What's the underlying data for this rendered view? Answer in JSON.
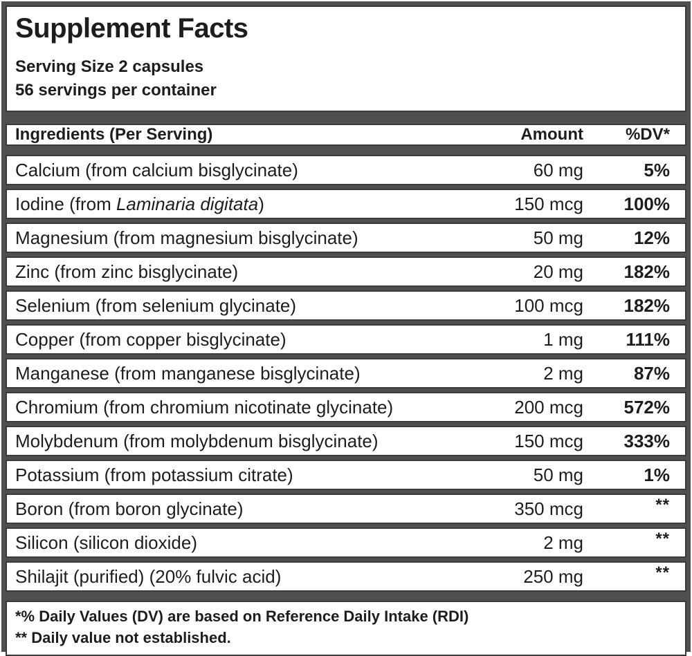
{
  "label": {
    "title": "Supplement Facts",
    "serving_size": "Serving Size 2 capsules",
    "servings_per_container": "56 servings per container"
  },
  "table": {
    "headers": {
      "ingredients": "Ingredients (Per Serving)",
      "amount": "Amount",
      "dv": "%DV*"
    },
    "rows": [
      {
        "name_pre": "Calcium (from calcium bisglycinate)",
        "name_italic": "",
        "name_post": "",
        "amount": "60 mg",
        "dv": "5%"
      },
      {
        "name_pre": "Iodine (from ",
        "name_italic": "Laminaria digitata",
        "name_post": ")",
        "amount": "150 mcg",
        "dv": "100%"
      },
      {
        "name_pre": "Magnesium (from magnesium bisglycinate)",
        "name_italic": "",
        "name_post": "",
        "amount": "50 mg",
        "dv": "12%"
      },
      {
        "name_pre": "Zinc (from zinc bisglycinate)",
        "name_italic": "",
        "name_post": "",
        "amount": "20 mg",
        "dv": "182%"
      },
      {
        "name_pre": "Selenium (from selenium glycinate)",
        "name_italic": "",
        "name_post": "",
        "amount": "100 mcg",
        "dv": "182%"
      },
      {
        "name_pre": "Copper (from copper bisglycinate)",
        "name_italic": "",
        "name_post": "",
        "amount": "1 mg",
        "dv": "111%"
      },
      {
        "name_pre": "Manganese (from manganese bisglycinate)",
        "name_italic": "",
        "name_post": "",
        "amount": "2 mg",
        "dv": "87%"
      },
      {
        "name_pre": "Chromium (from chromium nicotinate glycinate)",
        "name_italic": "",
        "name_post": "",
        "amount": "200 mcg",
        "dv": "572%"
      },
      {
        "name_pre": "Molybdenum (from molybdenum bisglycinate)",
        "name_italic": "",
        "name_post": "",
        "amount": "150 mcg",
        "dv": "333%"
      },
      {
        "name_pre": "Potassium (from potassium citrate)",
        "name_italic": "",
        "name_post": "",
        "amount": "50 mg",
        "dv": "1%"
      },
      {
        "name_pre": "Boron (from boron glycinate)",
        "name_italic": "",
        "name_post": "",
        "amount": "350 mcg",
        "dv": "**"
      },
      {
        "name_pre": "Silicon (silicon dioxide)",
        "name_italic": "",
        "name_post": "",
        "amount": "2 mg",
        "dv": "**"
      },
      {
        "name_pre": "Shilajit (purified) (20% fulvic acid)",
        "name_italic": "",
        "name_post": "",
        "amount": "250 mg",
        "dv": "**"
      }
    ]
  },
  "footnotes": {
    "dv_basis": "*% Daily Values (DV) are based on Reference Daily Intake (RDI)",
    "not_established": "** Daily value not established."
  },
  "colors": {
    "frame_gray": "#4f4f4f",
    "box_border": "#3a3a3a",
    "text": "#1d1d1d",
    "background": "#ffffff"
  }
}
